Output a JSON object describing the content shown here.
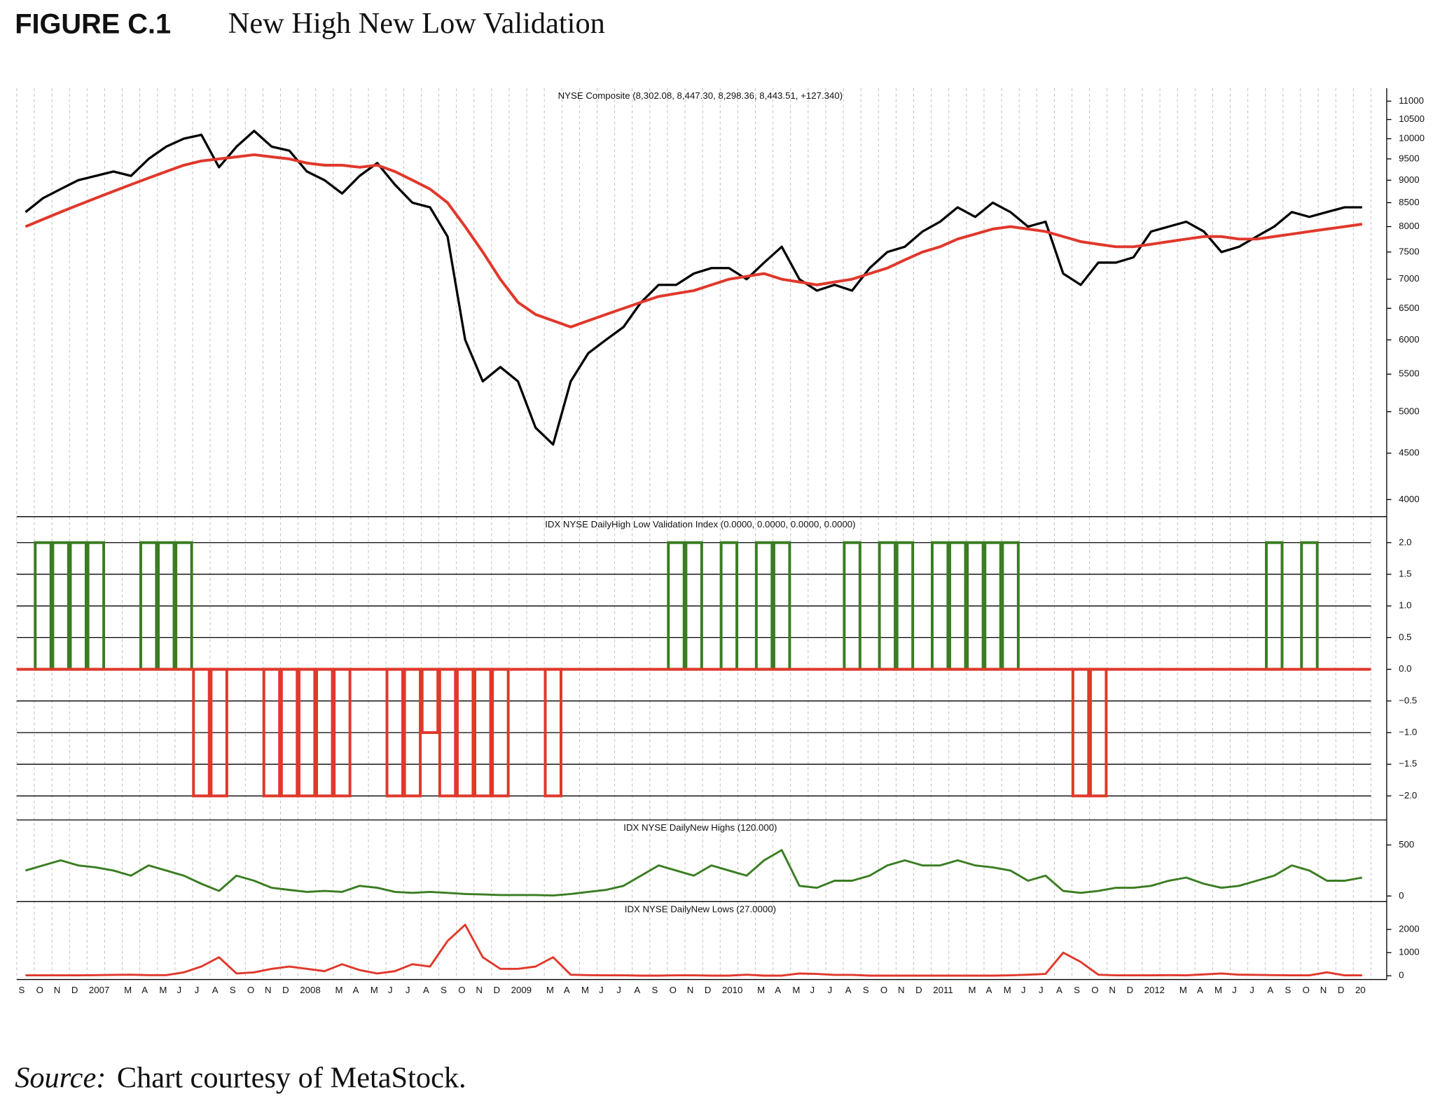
{
  "figure_label": "FIGURE C.1",
  "title": "New High New Low Validation",
  "source_label": "Source:",
  "source_text": "Chart courtesy of MetaStock.",
  "chart_data": [
    {
      "type": "line",
      "title": "NYSE Composite (8,302.08, 8,447.30, 8,298.36, 8,443.51, +127.340)",
      "log_scale": true,
      "ylim": [
        3830,
        11370
      ],
      "yticks": [
        4000,
        4500,
        5000,
        5500,
        6000,
        6500,
        7000,
        7500,
        8000,
        8500,
        9000,
        9500,
        10000,
        10500,
        11000
      ],
      "series": [
        {
          "color": "#000000",
          "values": [
            8300,
            8600,
            8800,
            9000,
            9100,
            9200,
            9100,
            9500,
            9800,
            10000,
            10100,
            9300,
            9800,
            10200,
            9800,
            9700,
            9200,
            9000,
            8700,
            9100,
            9400,
            8900,
            8500,
            8400,
            7800,
            6000,
            5400,
            5600,
            5400,
            4800,
            4600,
            5400,
            5800,
            6000,
            6200,
            6600,
            6900,
            6900,
            7100,
            7200,
            7200,
            7000,
            7300,
            7600,
            7000,
            6800,
            6900,
            6800,
            7200,
            7500,
            7600,
            7900,
            8100,
            8400,
            8200,
            8500,
            8300,
            8000,
            8100,
            7100,
            6900,
            7300,
            7300,
            7400,
            7900,
            8000,
            8100,
            7900,
            7500,
            7600,
            7800,
            8000,
            8300,
            8200,
            8300,
            8400,
            8400
          ]
        },
        {
          "color": "#e0382b",
          "values": [
            8000,
            8150,
            8300,
            8450,
            8600,
            8750,
            8900,
            9050,
            9200,
            9350,
            9450,
            9500,
            9550,
            9600,
            9550,
            9500,
            9400,
            9350,
            9350,
            9300,
            9350,
            9200,
            9000,
            8800,
            8500,
            8000,
            7500,
            7000,
            6600,
            6400,
            6300,
            6200,
            6300,
            6400,
            6500,
            6600,
            6700,
            6750,
            6800,
            6900,
            7000,
            7050,
            7100,
            7000,
            6950,
            6900,
            6950,
            7000,
            7100,
            7200,
            7350,
            7500,
            7600,
            7750,
            7850,
            7950,
            8000,
            7950,
            7900,
            7800,
            7700,
            7650,
            7600,
            7600,
            7650,
            7700,
            7750,
            7800,
            7800,
            7750,
            7750,
            7800,
            7850,
            7900,
            7950,
            8000,
            8050
          ]
        }
      ]
    },
    {
      "type": "step",
      "title": "IDX NYSE DailyHigh Low Validation Index (0.0000, 0.0000, 0.0000, 0.0000)",
      "ylim": [
        -2.38,
        2.41
      ],
      "yticks": [
        {
          "value": 2,
          "label": "2.0"
        },
        {
          "value": 1.5,
          "label": "1.5"
        },
        {
          "value": 1,
          "label": "1.0"
        },
        {
          "value": 0.5,
          "label": "0.5"
        },
        {
          "value": 0,
          "label": "0.0"
        },
        {
          "value": -0.5,
          "label": "−0.5"
        },
        {
          "value": -1,
          "label": "−1.0"
        },
        {
          "value": -1.5,
          "label": "−1.5"
        },
        {
          "value": -2,
          "label": "−2.0"
        }
      ],
      "positive_color": "#3a7d22",
      "negative_color": "#e0382b",
      "values": [
        0,
        2,
        2,
        2,
        2,
        0,
        0,
        2,
        2,
        2,
        -2,
        -2,
        0,
        0,
        -2,
        -2,
        -2,
        -2,
        -2,
        0,
        0,
        -2,
        -2,
        -1,
        -2,
        -2,
        -2,
        -2,
        0,
        0,
        -2,
        0,
        0,
        0,
        0,
        0,
        0,
        2,
        2,
        0,
        2,
        0,
        2,
        2,
        0,
        0,
        0,
        2,
        0,
        2,
        2,
        0,
        2,
        2,
        2,
        2,
        2,
        0,
        0,
        0,
        -2,
        -2,
        0,
        0,
        0,
        0,
        0,
        0,
        0,
        0,
        0,
        2,
        0,
        2,
        0,
        0,
        0
      ]
    },
    {
      "type": "line",
      "title": "IDX NYSE DailyNew Highs (120.000)",
      "ylim": [
        -55,
        745
      ],
      "yticks": [
        0,
        500
      ],
      "series": [
        {
          "color": "#3a7d22",
          "values": [
            250,
            300,
            350,
            300,
            280,
            250,
            200,
            300,
            250,
            200,
            120,
            50,
            200,
            150,
            80,
            60,
            40,
            50,
            40,
            100,
            80,
            40,
            30,
            40,
            30,
            20,
            15,
            10,
            10,
            10,
            5,
            20,
            40,
            60,
            100,
            200,
            300,
            250,
            200,
            300,
            250,
            200,
            350,
            450,
            100,
            80,
            150,
            150,
            200,
            300,
            350,
            300,
            300,
            350,
            300,
            280,
            250,
            150,
            200,
            50,
            30,
            50,
            80,
            80,
            100,
            150,
            180,
            120,
            80,
            100,
            150,
            200,
            300,
            250,
            150,
            150,
            180
          ]
        }
      ]
    },
    {
      "type": "line",
      "title": "IDX NYSE DailyNew Lows (27.0000)",
      "ylim": [
        -160,
        3200
      ],
      "yticks": [
        0,
        1000,
        2000
      ],
      "categories": [
        "S",
        "O",
        "N",
        "D",
        "2007",
        null,
        "M",
        "A",
        "M",
        "J",
        "J",
        "A",
        "S",
        "O",
        "N",
        "D",
        "2008",
        null,
        "M",
        "A",
        "M",
        "J",
        "J",
        "A",
        "S",
        "O",
        "N",
        "D",
        "2009",
        null,
        "M",
        "A",
        "M",
        "J",
        "J",
        "A",
        "S",
        "O",
        "N",
        "D",
        "2010",
        null,
        "M",
        "A",
        "M",
        "J",
        "J",
        "A",
        "S",
        "O",
        "N",
        "D",
        "2011",
        null,
        "M",
        "A",
        "M",
        "J",
        "J",
        "A",
        "S",
        "O",
        "N",
        "D",
        "2012",
        null,
        "M",
        "A",
        "M",
        "J",
        "J",
        "A",
        "S",
        "O",
        "N",
        "D",
        "20"
      ],
      "series": [
        {
          "color": "#e0382b",
          "values": [
            20,
            20,
            20,
            20,
            30,
            40,
            50,
            30,
            30,
            150,
            400,
            800,
            100,
            150,
            300,
            400,
            300,
            200,
            500,
            250,
            100,
            200,
            500,
            400,
            1500,
            2200,
            800,
            300,
            300,
            400,
            800,
            50,
            30,
            20,
            20,
            10,
            10,
            20,
            20,
            10,
            10,
            50,
            10,
            10,
            100,
            80,
            40,
            40,
            10,
            10,
            10,
            10,
            10,
            10,
            10,
            10,
            20,
            50,
            80,
            1000,
            600,
            50,
            20,
            20,
            20,
            30,
            20,
            60,
            100,
            50,
            40,
            30,
            20,
            20,
            150,
            20,
            20
          ]
        }
      ]
    }
  ]
}
